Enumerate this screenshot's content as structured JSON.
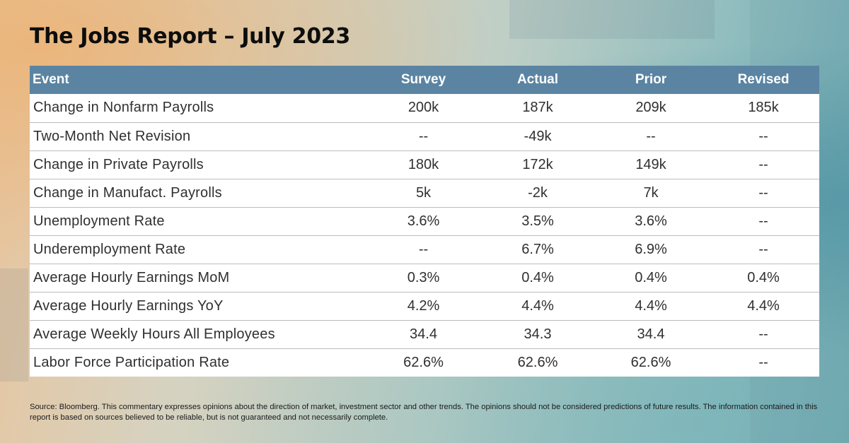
{
  "title": "The Jobs Report – July 2023",
  "table": {
    "headers": [
      "Event",
      "Survey",
      "Actual",
      "Prior",
      "Revised"
    ],
    "rows": [
      [
        "Change in Nonfarm Payrolls",
        "200k",
        "187k",
        "209k",
        "185k"
      ],
      [
        "Two-Month Net Revision",
        "--",
        "-49k",
        "--",
        "--"
      ],
      [
        "Change in Private Payrolls",
        "180k",
        "172k",
        "149k",
        "--"
      ],
      [
        "Change in Manufact. Payrolls",
        "5k",
        "-2k",
        "7k",
        "--"
      ],
      [
        "Unemployment Rate",
        "3.6%",
        "3.5%",
        "3.6%",
        "--"
      ],
      [
        "Underemployment Rate",
        "--",
        "6.7%",
        "6.9%",
        "--"
      ],
      [
        "Average Hourly Earnings MoM",
        "0.3%",
        "0.4%",
        "0.4%",
        "0.4%"
      ],
      [
        "Average Hourly Earnings YoY",
        "4.2%",
        "4.4%",
        "4.4%",
        "4.4%"
      ],
      [
        "Average Weekly Hours All Employees",
        "34.4",
        "34.3",
        "34.4",
        "--"
      ],
      [
        "Labor Force Participation Rate",
        "62.6%",
        "62.6%",
        "62.6%",
        "--"
      ]
    ]
  },
  "source": "Source: Bloomberg. This commentary expresses opinions about the direction of market, investment sector and other trends. The opinions should not be considered predictions of future results. The information contained in this report is based on sources believed to be reliable, but is not guaranteed and not necessarily complete.",
  "colors": {
    "header_bg": "#5b84a3",
    "header_text": "#ffffff",
    "row_bg": "#ffffff",
    "row_text": "#303030",
    "title_text": "#0d0d0d"
  }
}
